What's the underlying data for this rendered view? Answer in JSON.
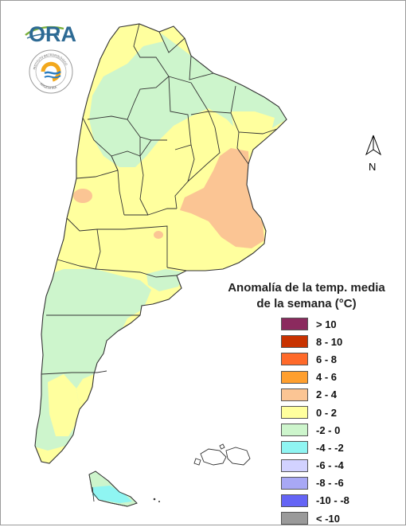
{
  "logos": {
    "ora_text": "ORA",
    "inta_ring_text": "INSTITUTO METEOROLÓGICO",
    "inta_bottom_text": "ARGENTINA"
  },
  "north_arrow": {
    "label": "N"
  },
  "legend": {
    "title_line1": "Anomalía de la temp. media",
    "title_line2": "de la semana (°C)",
    "items": [
      {
        "label": "> 10",
        "color": "#8b2a5e"
      },
      {
        "label": "8 - 10",
        "color": "#c83200"
      },
      {
        "label": "6 - 8",
        "color": "#ff6a2a"
      },
      {
        "label": "4 - 6",
        "color": "#ff9f2e"
      },
      {
        "label": "2 - 4",
        "color": "#fbc594"
      },
      {
        "label": "0 - 2",
        "color": "#ffff9e"
      },
      {
        "label": "-2 - 0",
        "color": "#cdf5cc"
      },
      {
        "label": "-4 - -2",
        "color": "#8ff5f2"
      },
      {
        "label": "-6 - -4",
        "color": "#d2d2ff"
      },
      {
        "label": "-8 - -6",
        "color": "#a8a8f5"
      },
      {
        "label": "-10 - -8",
        "color": "#6464f5"
      },
      {
        "label": "< -10",
        "color": "#9a9a9a"
      }
    ]
  },
  "colors": {
    "range_0_2": "#ffff9e",
    "range_neg2_0": "#cdf5cc",
    "range_2_4": "#fbc594",
    "range_neg4_neg2": "#8ff5f2",
    "border": "#333333"
  }
}
